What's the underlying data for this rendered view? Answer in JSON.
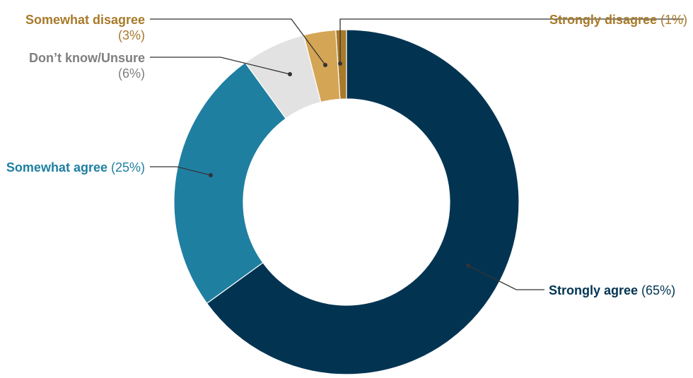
{
  "chart_data": {
    "type": "pie",
    "variant": "donut",
    "slices": [
      {
        "label": "Strongly disagree",
        "pct_label": "(1%)",
        "value": 1,
        "color": "#A87A2A",
        "text_color": "#A87A2A"
      },
      {
        "label": "Somewhat disagree",
        "pct_label": "(3%)",
        "value": 3,
        "color": "#D4A555",
        "text_color": "#A87A2A"
      },
      {
        "label": "Don’t know/Unsure",
        "pct_label": "(6%)",
        "value": 6,
        "color": "#E2E2E2",
        "text_color": "#7F7F7F"
      },
      {
        "label": "Somewhat agree",
        "pct_label": "(25%)",
        "value": 25,
        "color": "#1F7FA1",
        "text_color": "#1F7FA1"
      },
      {
        "label": "Strongly agree",
        "pct_label": "(65%)",
        "value": 65,
        "color": "#023452",
        "text_color": "#023452"
      }
    ],
    "legend": "none",
    "data_labels": "outside with leader lines"
  }
}
